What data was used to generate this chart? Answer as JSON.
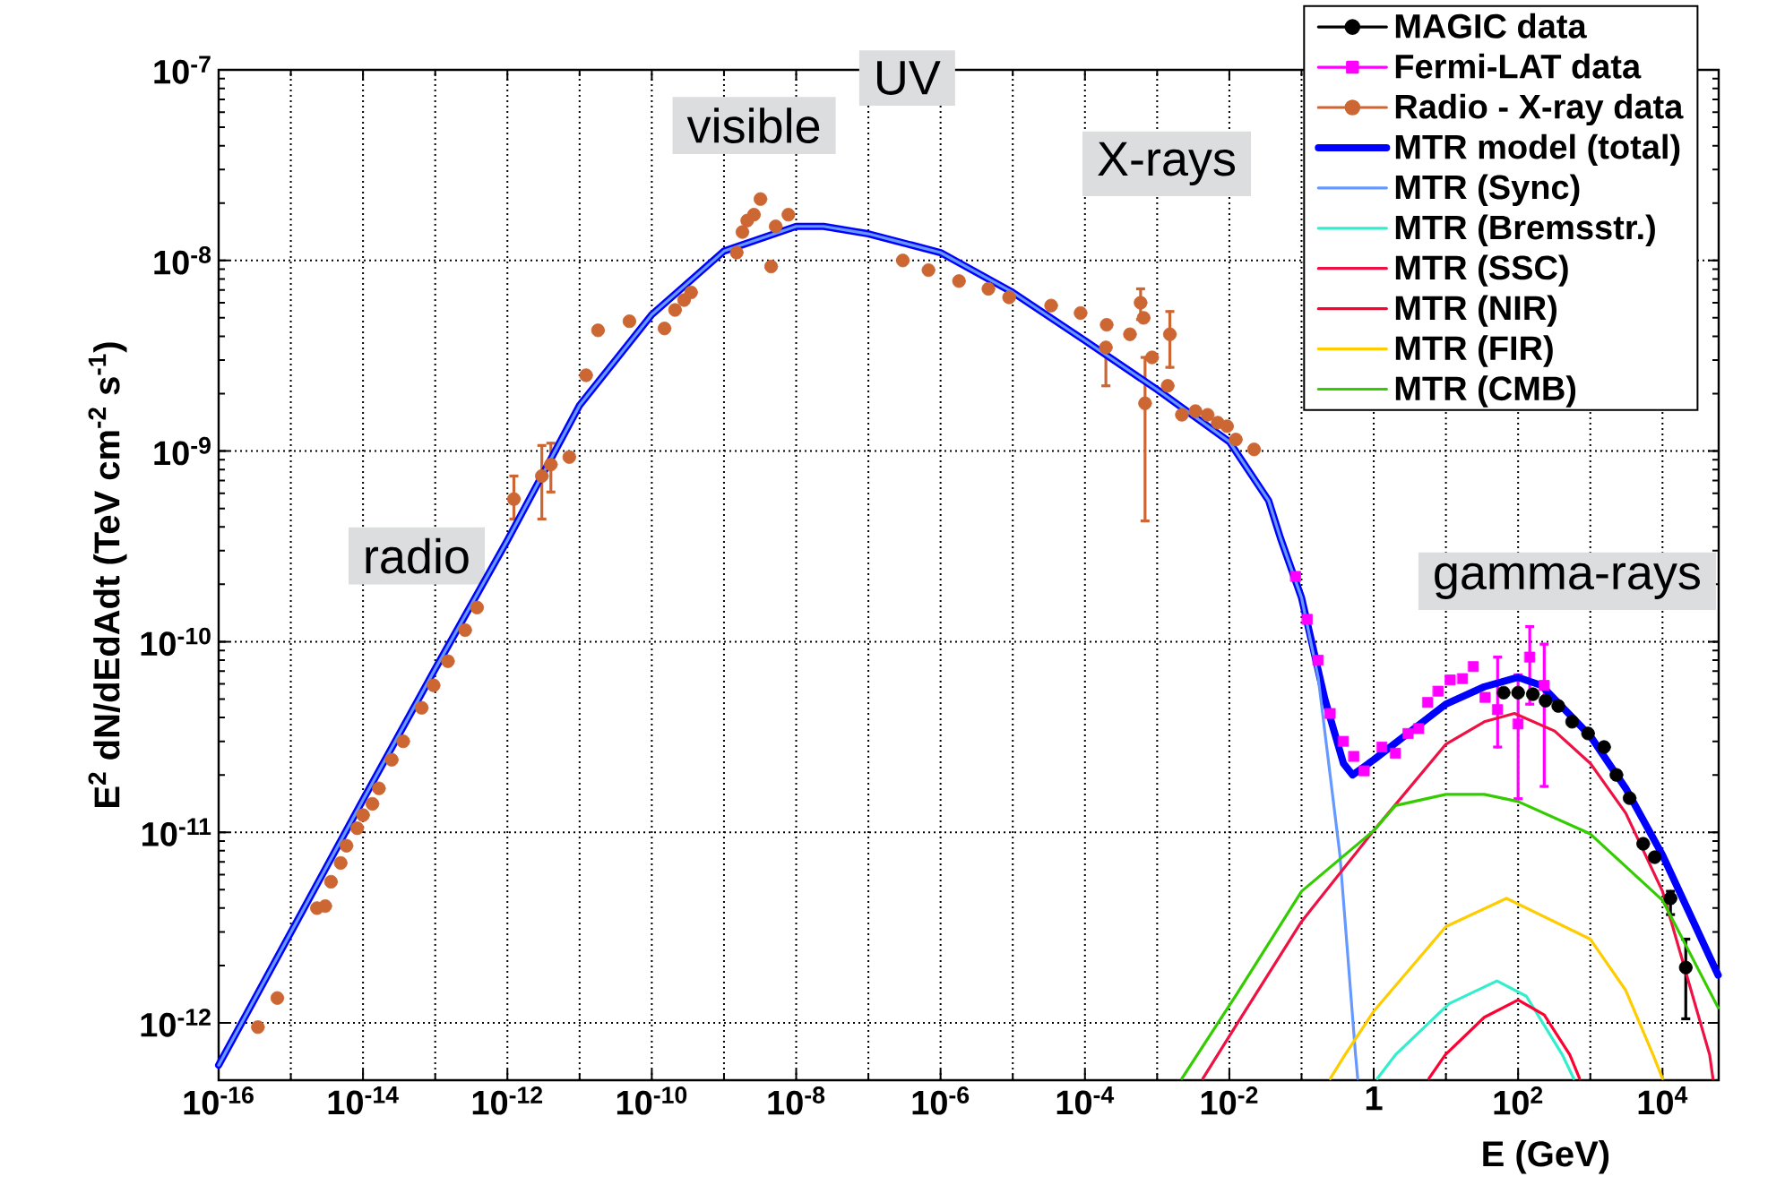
{
  "chart_data": {
    "type": "line",
    "xlabel": "E (GeV)",
    "ylabel": "E$^{2}$ dN/dEdAdt (TeV cm$^{-2}$ s$^{-1}$)",
    "log": "xy",
    "grid": true,
    "legend": "top right",
    "xlim": [
      1e-16,
      60000.0
    ],
    "ylim": [
      5e-13,
      1e-07
    ],
    "xticks": [
      {
        "value": 1e-16,
        "label": "10$^{-16}$"
      },
      {
        "value": 1e-15,
        "label": null
      },
      {
        "value": 1e-14,
        "label": "10$^{-14}$"
      },
      {
        "value": 1e-13,
        "label": null
      },
      {
        "value": 1e-12,
        "label": "10$^{-12}$"
      },
      {
        "value": 1e-11,
        "label": null
      },
      {
        "value": 1e-10,
        "label": "10$^{-10}$"
      },
      {
        "value": 1e-09,
        "label": null
      },
      {
        "value": 1e-08,
        "label": "10$^{-8}$"
      },
      {
        "value": 1e-07,
        "label": null
      },
      {
        "value": 1e-06,
        "label": "10$^{-6}$"
      },
      {
        "value": 1e-05,
        "label": null
      },
      {
        "value": 0.0001,
        "label": "10$^{-4}$"
      },
      {
        "value": 0.001,
        "label": null
      },
      {
        "value": 0.01,
        "label": "10$^{-2}$"
      },
      {
        "value": 0.1,
        "label": null
      },
      {
        "value": 1,
        "label": "1"
      },
      {
        "value": 10,
        "label": null
      },
      {
        "value": 100,
        "label": "10$^{2}$"
      },
      {
        "value": 1000,
        "label": null
      },
      {
        "value": 10000,
        "label": "10$^{4}$"
      }
    ],
    "yticks": [
      {
        "value": 1e-12,
        "label": "10$^{-12}$"
      },
      {
        "value": 1e-11,
        "label": "10$^{-11}$"
      },
      {
        "value": 1e-10,
        "label": "10$^{-10}$"
      },
      {
        "value": 1e-09,
        "label": "10$^{-9}$"
      },
      {
        "value": 1e-08,
        "label": "10$^{-8}$"
      },
      {
        "value": 1e-07,
        "label": "10$^{-7}$"
      }
    ],
    "annotations": [
      "radio",
      "visible",
      "UV",
      "X-rays",
      "gamma-rays"
    ],
    "series": [
      {
        "name": "MAGIC data",
        "type": "scatter",
        "marker": "circle",
        "color": "#000000",
        "x": [
          63,
          100,
          160,
          240,
          360,
          560,
          930,
          1550,
          2300,
          3500,
          5400,
          7800,
          12900,
          21000
        ],
        "values": [
          5.4e-11,
          5.4e-11,
          5.3e-11,
          4.9e-11,
          4.6e-11,
          3.8e-11,
          3.3e-11,
          2.8e-11,
          2e-11,
          1.51e-11,
          8.7e-12,
          7.4e-12,
          4.5e-12,
          1.95e-12
        ],
        "errors": [
          null,
          null,
          null,
          null,
          null,
          null,
          null,
          null,
          null,
          null,
          null,
          null,
          [
            3.7e-12,
            4.9e-12
          ],
          [
            1.05e-12,
            2.75e-12
          ]
        ]
      },
      {
        "name": "Fermi-LAT data",
        "type": "scatter",
        "marker": "square",
        "color": "#ff00ff",
        "x": [
          0.083,
          0.12,
          0.17,
          0.25,
          0.38,
          0.53,
          0.74,
          1.3,
          2.0,
          3.0,
          4.2,
          5.6,
          7.8,
          11.5,
          17,
          24,
          35,
          52,
          100,
          145,
          230
        ],
        "values": [
          2.2e-10,
          1.31e-10,
          8e-11,
          4.2e-11,
          3e-11,
          2.5e-11,
          2.1e-11,
          2.8e-11,
          2.6e-11,
          3.3e-11,
          3.5e-11,
          4.8e-11,
          5.5e-11,
          6.3e-11,
          6.4e-11,
          7.4e-11,
          5.1e-11,
          4.4e-11,
          3.7e-11,
          8.3e-11,
          5.9e-11
        ],
        "errors": [
          null,
          null,
          null,
          null,
          null,
          null,
          null,
          null,
          null,
          null,
          null,
          null,
          null,
          null,
          null,
          null,
          null,
          [
            2.8e-11,
            8.3e-11
          ],
          [
            1.5e-11,
            6.7e-11
          ],
          [
            4.7e-11,
            1.2e-10
          ],
          [
            1.74e-11,
            9.7e-11
          ]
        ]
      },
      {
        "name": "Radio - X-ray data",
        "type": "scatter",
        "marker": "circle",
        "color": "#cc6633",
        "x": [
          3.5e-16,
          6.5e-16,
          2.3e-15,
          3e-15,
          3.6e-15,
          4.9e-15,
          5.9e-15,
          8.3e-15,
          1e-14,
          1.35e-14,
          1.66e-14,
          2.5e-14,
          3.6e-14,
          6.5e-14,
          9.5e-14,
          1.5e-13,
          2.6e-13,
          3.8e-13,
          1.23e-12,
          3e-12,
          4e-12,
          7.2e-12,
          1.23e-11,
          1.8e-11,
          4.9e-11,
          1.5e-10,
          2.1e-10,
          2.8e-10,
          3.5e-10,
          1.5e-09,
          1.8e-09,
          2.1e-09,
          2.6e-09,
          3.2e-09,
          4.5e-09,
          5.2e-09,
          7.8e-09,
          3e-07,
          6.8e-07,
          1.8e-06,
          4.6e-06,
          8.9e-06,
          3.4e-05,
          8.7e-05,
          0.000195,
          0.0002,
          0.00042,
          0.00059,
          0.00065,
          0.00068,
          0.00085,
          0.0014,
          0.0015,
          0.0022,
          0.0034,
          0.005,
          0.0069,
          0.0093,
          0.0123,
          0.022
        ],
        "values": [
          9.5e-13,
          1.35e-12,
          4e-12,
          4.1e-12,
          5.5e-12,
          6.9e-12,
          8.5e-12,
          1.05e-11,
          1.23e-11,
          1.41e-11,
          1.7e-11,
          2.4e-11,
          3e-11,
          4.5e-11,
          5.9e-11,
          7.9e-11,
          1.15e-10,
          1.51e-10,
          5.6e-10,
          7.4e-10,
          8.5e-10,
          9.3e-10,
          2.5e-09,
          4.3e-09,
          4.8e-09,
          4.4e-09,
          5.5e-09,
          6.2e-09,
          6.8e-09,
          1.1e-08,
          1.41e-08,
          1.62e-08,
          1.74e-08,
          2.1e-08,
          9.3e-09,
          1.51e-08,
          1.74e-08,
          1e-08,
          8.9e-09,
          7.8e-09,
          7.1e-09,
          6.4e-09,
          5.8e-09,
          5.3e-09,
          3.5e-09,
          4.6e-09,
          4.1e-09,
          6e-09,
          5e-09,
          1.78e-09,
          3.1e-09,
          2.2e-09,
          4.1e-09,
          1.55e-09,
          1.62e-09,
          1.55e-09,
          1.41e-09,
          1.35e-09,
          1.15e-09,
          1.02e-09
        ],
        "errors": [
          null,
          null,
          null,
          null,
          null,
          null,
          null,
          null,
          null,
          null,
          null,
          null,
          null,
          null,
          null,
          null,
          null,
          null,
          [
            4.4e-10,
            7.4e-10
          ],
          [
            4.4e-10,
            1.07e-09
          ],
          [
            6.1e-10,
            1.1e-09
          ],
          null,
          null,
          null,
          null,
          null,
          null,
          null,
          null,
          null,
          null,
          null,
          null,
          null,
          null,
          null,
          null,
          null,
          null,
          null,
          null,
          null,
          null,
          null,
          [
            2.2e-09,
            3.5e-09
          ],
          null,
          null,
          [
            4.9e-09,
            7.1e-09
          ],
          null,
          [
            4.3e-10,
            3.1e-09
          ],
          null,
          null,
          [
            2.75e-09,
            5.4e-09
          ],
          null,
          null,
          null,
          null,
          null,
          null,
          null
        ]
      },
      {
        "name": "MTR model (total)",
        "marker": "none",
        "color": "#0000ff",
        "x": [
          1e-16,
          1e-14,
          1e-13,
          1e-12,
          1e-11,
          1e-10,
          1e-09,
          1e-08,
          2.4e-08,
          1e-07,
          1e-06,
          1e-05,
          0.0001,
          0.001,
          0.01,
          0.035,
          0.051,
          0.1,
          0.21,
          0.38,
          0.51,
          1,
          10,
          34,
          100,
          210,
          1000,
          3100,
          10000,
          59000
        ],
        "values": [
          6e-13,
          1.48e-11,
          7.2e-11,
          3.4e-10,
          1.74e-09,
          5.2e-09,
          1.12e-08,
          1.51e-08,
          1.51e-08,
          1.38e-08,
          1.1e-08,
          6.8e-09,
          3.8e-09,
          2.1e-09,
          1.12e-09,
          5.5e-10,
          3.5e-10,
          1.7e-10,
          5e-11,
          2.3e-11,
          2e-11,
          2.4e-11,
          4.7e-11,
          5.8e-11,
          6.5e-11,
          5.9e-11,
          3.2e-11,
          1.7e-11,
          7.6e-12,
          1.78e-12
        ]
      },
      {
        "name": "MTR (Sync)",
        "marker": "none",
        "color": "#6699ff",
        "x": [
          1e-16,
          1e-14,
          1e-13,
          1e-12,
          1e-11,
          1e-10,
          1e-09,
          1e-08,
          2.4e-08,
          1e-07,
          1e-06,
          1e-05,
          0.0001,
          0.001,
          0.01,
          0.035,
          0.051,
          0.1,
          0.17,
          0.34,
          0.56,
          0.6
        ],
        "values": [
          6e-13,
          1.48e-11,
          7.2e-11,
          3.4e-10,
          1.74e-09,
          5.2e-09,
          1.12e-08,
          1.51e-08,
          1.51e-08,
          1.38e-08,
          1.1e-08,
          6.8e-09,
          3.8e-09,
          2.1e-09,
          1.12e-09,
          5.5e-10,
          3.5e-10,
          1.7e-10,
          6.5e-11,
          7.6e-12,
          6.8e-13,
          5.1e-13
        ]
      },
      {
        "name": "MTR (Bremsstr.)",
        "marker": "none",
        "color": "#33eecc",
        "x": [
          1.12,
          2.0,
          11,
          51,
          130,
          410,
          590
        ],
        "values": [
          5.1e-13,
          6.8e-13,
          1.26e-12,
          1.66e-12,
          1.38e-12,
          6.8e-13,
          5.1e-13
        ]
      },
      {
        "name": "MTR (SSC)",
        "marker": "none",
        "color": "#ee1144",
        "x": [
          0.0043,
          0.0126,
          0.1,
          1,
          10,
          34,
          89,
          320,
          1000,
          3100,
          10000,
          45000,
          50000
        ],
        "values": [
          5.1e-13,
          9.8e-13,
          3.4e-12,
          1.02e-11,
          2.9e-11,
          3.8e-11,
          4.2e-11,
          3.4e-11,
          2.3e-11,
          1.26e-11,
          4.9e-12,
          6.8e-13,
          5.1e-13
        ]
      },
      {
        "name": "MTR (NIR)",
        "marker": "none",
        "color": "#ff0033",
        "x": [
          5.8,
          9.8,
          34,
          100,
          230,
          520,
          710
        ],
        "values": [
          5.1e-13,
          6.8e-13,
          1.07e-12,
          1.32e-12,
          1.1e-12,
          6.8e-13,
          5.1e-13
        ]
      },
      {
        "name": "MTR (FIR)",
        "marker": "none",
        "color": "#ffcc00",
        "x": [
          0.25,
          0.4,
          1,
          10,
          69,
          1000,
          3100,
          7400,
          10000
        ],
        "values": [
          5.1e-13,
          6.8e-13,
          1.15e-12,
          3.2e-12,
          4.5e-12,
          2.75e-12,
          1.48e-12,
          6.8e-13,
          5.1e-13
        ]
      },
      {
        "name": "MTR (CMB)",
        "marker": "none",
        "color": "#33cc00",
        "x": [
          0.0022,
          0.0126,
          0.1,
          1,
          2.0,
          10,
          34,
          100,
          1000,
          10000,
          59000
        ],
        "values": [
          5.1e-13,
          1.41e-12,
          4.9e-12,
          1.02e-11,
          1.38e-11,
          1.58e-11,
          1.58e-11,
          1.45e-11,
          9.8e-12,
          4.4e-12,
          1.2e-12
        ]
      }
    ]
  }
}
